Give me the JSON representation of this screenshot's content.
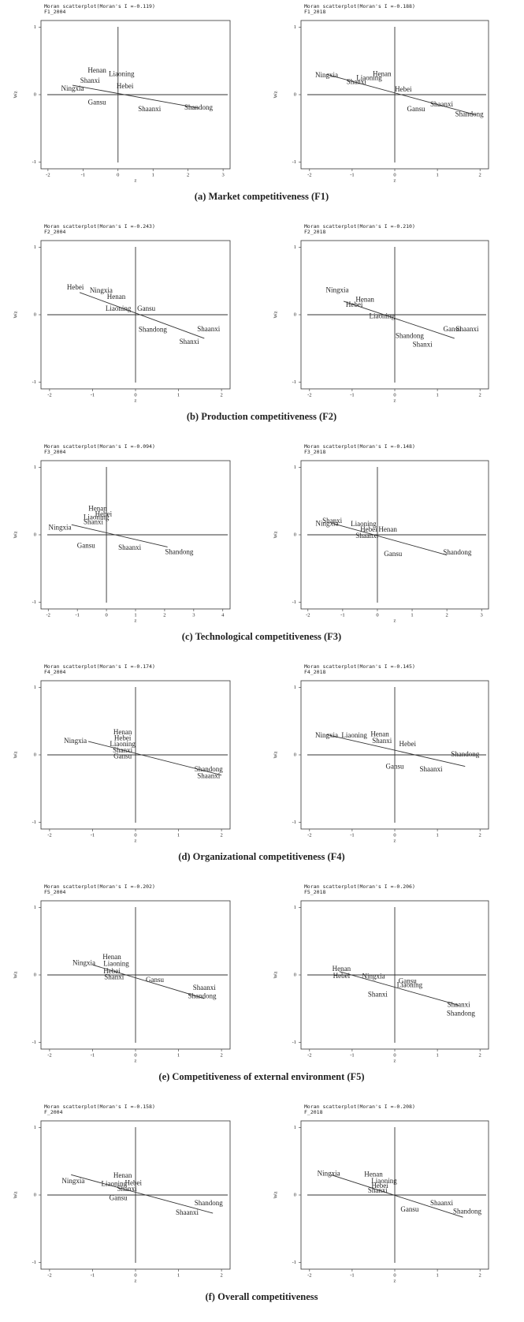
{
  "chart_data": [
    {
      "type": "scatter",
      "title": "Moran scatterplot(Moran's I =-0.119)",
      "subtitle": "F1_2004",
      "xlabel": "z",
      "ylabel": "Wz",
      "xlim": [
        -2.2,
        3.2
      ],
      "xticks": [
        -2,
        -1,
        0,
        1,
        2,
        3
      ],
      "ylim": [
        -1.1,
        1.1
      ],
      "yticks": [
        -1,
        0,
        1
      ],
      "point_labels": [
        "Henan",
        "Liaoning",
        "Shanxi",
        "Hebei",
        "Ningxia",
        "Gansu",
        "Shaanxi",
        "Shandong"
      ],
      "x": [
        -0.6,
        0.1,
        -0.8,
        0.2,
        -1.3,
        -0.6,
        0.9,
        2.3
      ],
      "y": [
        0.35,
        0.3,
        0.2,
        0.12,
        0.08,
        -0.12,
        -0.22,
        -0.2
      ],
      "fit_x": [
        -1.3,
        2.3
      ],
      "fit_y": [
        0.14,
        -0.2
      ]
    },
    {
      "type": "scatter",
      "title": "Moran scatterplot(Moran's I =-0.188)",
      "subtitle": "F1_2018",
      "xlabel": "z",
      "ylabel": "Wz",
      "xlim": [
        -2.2,
        2.2
      ],
      "xticks": [
        -2,
        -1,
        0,
        1,
        2
      ],
      "ylim": [
        -1.1,
        1.1
      ],
      "yticks": [
        -1,
        0,
        1
      ],
      "point_labels": [
        "Ningxia",
        "Henan",
        "Liaoning",
        "Shanxi",
        "Hebei",
        "Shaanxi",
        "Gansu",
        "Shandong"
      ],
      "x": [
        -1.6,
        -0.3,
        -0.6,
        -0.9,
        0.2,
        1.1,
        0.5,
        1.75
      ],
      "y": [
        0.28,
        0.3,
        0.24,
        0.18,
        0.07,
        -0.15,
        -0.22,
        -0.3
      ],
      "fit_x": [
        -1.6,
        1.9
      ],
      "fit_y": [
        0.3,
        -0.3
      ]
    },
    {
      "type": "scatter",
      "title": "Moran scatterplot(Moran's I =-0.243)",
      "subtitle": "F2_2004",
      "xlabel": "z",
      "ylabel": "Wz",
      "xlim": [
        -2.2,
        2.2
      ],
      "xticks": [
        -2,
        -1,
        0,
        1,
        2
      ],
      "ylim": [
        -1.1,
        1.1
      ],
      "yticks": [
        -1,
        0,
        1
      ],
      "point_labels": [
        "Hebei",
        "Ningxia",
        "Henan",
        "Liaoning",
        "Gansu",
        "Shandong",
        "Shaanxi",
        "Shanxi"
      ],
      "x": [
        -1.4,
        -0.8,
        -0.45,
        -0.4,
        0.25,
        0.4,
        1.7,
        1.25
      ],
      "y": [
        0.4,
        0.35,
        0.26,
        0.08,
        0.08,
        -0.23,
        -0.22,
        -0.41
      ],
      "fit_x": [
        -1.3,
        1.6
      ],
      "fit_y": [
        0.33,
        -0.35
      ]
    },
    {
      "type": "scatter",
      "title": "Moran scatterplot(Moran's I =-0.210)",
      "subtitle": "F2_2018",
      "xlabel": "z",
      "ylabel": "Wz",
      "xlim": [
        -2.2,
        2.2
      ],
      "xticks": [
        -2,
        -1,
        0,
        1,
        2
      ],
      "ylim": [
        -1.1,
        1.1
      ],
      "yticks": [
        -1,
        0,
        1
      ],
      "point_labels": [
        "Ningxia",
        "Henan",
        "Hebei",
        "Liaoning",
        "Shandong",
        "Shanxi",
        "Gansu",
        "Shaanxi"
      ],
      "x": [
        -1.35,
        -0.7,
        -0.95,
        -0.3,
        0.35,
        0.65,
        1.35,
        1.7
      ],
      "y": [
        0.36,
        0.22,
        0.14,
        -0.03,
        -0.32,
        -0.45,
        -0.22,
        -0.22
      ],
      "fit_x": [
        -1.2,
        1.4
      ],
      "fit_y": [
        0.2,
        -0.35
      ]
    },
    {
      "type": "scatter",
      "title": "Moran scatterplot(Moran's I =-0.094)",
      "subtitle": "F3_2004",
      "xlabel": "z",
      "ylabel": "Wz",
      "xlim": [
        -2.25,
        4.25
      ],
      "xticks": [
        -2,
        -1,
        0,
        1,
        2,
        3,
        4
      ],
      "ylim": [
        -1.1,
        1.1
      ],
      "yticks": [
        -1,
        0,
        1
      ],
      "point_labels": [
        "Henan",
        "Hebei",
        "Liaoning",
        "Shanxi",
        "Ningxia",
        "Gansu",
        "Shaanxi",
        "Shandong"
      ],
      "x": [
        -0.3,
        -0.1,
        -0.35,
        -0.45,
        -1.6,
        -0.7,
        0.8,
        2.5
      ],
      "y": [
        0.38,
        0.3,
        0.25,
        0.18,
        0.1,
        -0.17,
        -0.2,
        -0.26
      ],
      "fit_x": [
        -1.2,
        2.1
      ],
      "fit_y": [
        0.15,
        -0.18
      ]
    },
    {
      "type": "scatter",
      "title": "Moran scatterplot(Moran's I =-0.148)",
      "subtitle": "F3_2018",
      "xlabel": "z",
      "ylabel": "Wz",
      "xlim": [
        -2.2,
        3.2
      ],
      "xticks": [
        -2,
        -1,
        0,
        1,
        2,
        3
      ],
      "ylim": [
        -1.1,
        1.1
      ],
      "yticks": [
        -1,
        0,
        1
      ],
      "point_labels": [
        "Shanxi",
        "Ningxia",
        "Liaoning",
        "Hebei",
        "Henan",
        "Shaanxi",
        "Gansu",
        "Shandong"
      ],
      "x": [
        -1.3,
        -1.45,
        -0.4,
        -0.25,
        0.3,
        -0.3,
        0.45,
        2.3
      ],
      "y": [
        0.2,
        0.16,
        0.15,
        0.07,
        0.07,
        -0.02,
        -0.29,
        -0.27
      ],
      "fit_x": [
        -1.3,
        2
      ],
      "fit_y": [
        0.17,
        -0.3
      ]
    },
    {
      "type": "scatter",
      "title": "Moran scatterplot(Moran's I =-0.174)",
      "subtitle": "F4_2004",
      "xlabel": "z",
      "ylabel": "Wz",
      "xlim": [
        -2.2,
        2.2
      ],
      "xticks": [
        -2,
        -1,
        0,
        1,
        2
      ],
      "ylim": [
        -1.1,
        1.1
      ],
      "yticks": [
        -1,
        0,
        1
      ],
      "point_labels": [
        "Ningxia",
        "Henan",
        "Hebei",
        "Liaoning",
        "Shanxi",
        "Gansu",
        "Shandong",
        "Shaanxi"
      ],
      "x": [
        -1.4,
        -0.3,
        -0.3,
        -0.3,
        -0.3,
        -0.3,
        1.7,
        1.7
      ],
      "y": [
        0.2,
        0.33,
        0.24,
        0.15,
        0.06,
        -0.03,
        -0.22,
        -0.32
      ],
      "fit_x": [
        -1.1,
        2
      ],
      "fit_y": [
        0.2,
        -0.3
      ]
    },
    {
      "type": "scatter",
      "title": "Moran scatterplot(Moran's I =-0.145)",
      "subtitle": "F4_2018",
      "xlabel": "z",
      "ylabel": "Wz",
      "xlim": [
        -2.2,
        2.2
      ],
      "xticks": [
        -2,
        -1,
        0,
        1,
        2
      ],
      "ylim": [
        -1.1,
        1.1
      ],
      "yticks": [
        -1,
        0,
        1
      ],
      "point_labels": [
        "Ningxia",
        "Liaoning",
        "Henan",
        "Shanxi",
        "Hebei",
        "Gansu",
        "Shandong",
        "Shaanxi"
      ],
      "x": [
        -1.6,
        -0.95,
        -0.35,
        -0.3,
        0.3,
        0,
        1.65,
        0.85
      ],
      "y": [
        0.28,
        0.28,
        0.3,
        0.2,
        0.15,
        -0.18,
        0,
        -0.22
      ],
      "fit_x": [
        -1.6,
        1.65
      ],
      "fit_y": [
        0.3,
        -0.17
      ]
    },
    {
      "type": "scatter",
      "title": "Moran scatterplot(Moran's I =-0.202)",
      "subtitle": "F5_2004",
      "xlabel": "z",
      "ylabel": "Wz",
      "xlim": [
        -2.2,
        2.2
      ],
      "xticks": [
        -2,
        -1,
        0,
        1,
        2
      ],
      "ylim": [
        -1.1,
        1.1
      ],
      "yticks": [
        -1,
        0,
        1
      ],
      "point_labels": [
        "Ningxia",
        "Henan",
        "Liaoning",
        "Hebei",
        "Shanxi",
        "Gansu",
        "Shaanxi",
        "Shandong"
      ],
      "x": [
        -1.2,
        -0.55,
        -0.45,
        -0.55,
        -0.5,
        0.45,
        1.6,
        1.55
      ],
      "y": [
        0.17,
        0.26,
        0.16,
        0.05,
        -0.04,
        -0.08,
        -0.2,
        -0.32
      ],
      "fit_x": [
        -1,
        1.6
      ],
      "fit_y": [
        0.15,
        -0.35
      ]
    },
    {
      "type": "scatter",
      "title": "Moran scatterplot(Moran's I =-0.206)",
      "subtitle": "F5_2018",
      "xlabel": "z",
      "ylabel": "Wz",
      "xlim": [
        -2.2,
        2.2
      ],
      "xticks": [
        -2,
        -1,
        0,
        1,
        2
      ],
      "ylim": [
        -1.1,
        1.1
      ],
      "yticks": [
        -1,
        0,
        1
      ],
      "point_labels": [
        "Henan",
        "Hebei",
        "Ningxia",
        "Gansu",
        "Liaoning",
        "Shanxi",
        "Shaanxi",
        "Shandong"
      ],
      "x": [
        -1.25,
        -1.25,
        -0.5,
        0.3,
        0.35,
        -0.4,
        1.5,
        1.55
      ],
      "y": [
        0.08,
        -0.02,
        -0.03,
        -0.1,
        -0.16,
        -0.3,
        -0.45,
        -0.58
      ],
      "fit_x": [
        -1.3,
        1.5
      ],
      "fit_y": [
        0.05,
        -0.45
      ]
    },
    {
      "type": "scatter",
      "title": "Moran scatterplot(Moran's I =-0.158)",
      "subtitle": "F_2004",
      "xlabel": "z",
      "ylabel": "Wz",
      "xlim": [
        -2.2,
        2.2
      ],
      "xticks": [
        -2,
        -1,
        0,
        1,
        2
      ],
      "ylim": [
        -1.1,
        1.1
      ],
      "yticks": [
        -1,
        0,
        1
      ],
      "point_labels": [
        "Ningxia",
        "Henan",
        "Liaoning",
        "Hebei",
        "Shanxi",
        "Gansu",
        "Shandong",
        "Shaanxi"
      ],
      "x": [
        -1.45,
        -0.3,
        -0.5,
        -0.05,
        -0.2,
        -0.4,
        1.7,
        1.2
      ],
      "y": [
        0.2,
        0.28,
        0.16,
        0.17,
        0.08,
        -0.05,
        -0.13,
        -0.27
      ],
      "fit_x": [
        -1.5,
        1.8
      ],
      "fit_y": [
        0.3,
        -0.27
      ]
    },
    {
      "type": "scatter",
      "title": "Moran scatterplot(Moran's I =-0.208)",
      "subtitle": "F_2018",
      "xlabel": "z",
      "ylabel": "Wz",
      "xlim": [
        -2.2,
        2.2
      ],
      "xticks": [
        -2,
        -1,
        0,
        1,
        2
      ],
      "ylim": [
        -1.1,
        1.1
      ],
      "yticks": [
        -1,
        0,
        1
      ],
      "point_labels": [
        "Ningxia",
        "Henan",
        "Liaoning",
        "Hebei",
        "Shanxi",
        "Gansu",
        "Shaanxi",
        "Shandong"
      ],
      "x": [
        -1.55,
        -0.5,
        -0.25,
        -0.35,
        -0.4,
        0.35,
        1.1,
        1.7
      ],
      "y": [
        0.31,
        0.3,
        0.2,
        0.13,
        0.06,
        -0.22,
        -0.13,
        -0.25
      ],
      "fit_x": [
        -1.5,
        1.6
      ],
      "fit_y": [
        0.3,
        -0.33
      ]
    }
  ],
  "captions": [
    "(a) Market competitiveness (F1)",
    "(b) Production competitiveness (F2)",
    "(c) Technological competitiveness (F3)",
    "(d) Organizational competitiveness (F4)",
    "(e) Competitiveness of external environment (F5)",
    "(f) Overall competitiveness"
  ]
}
